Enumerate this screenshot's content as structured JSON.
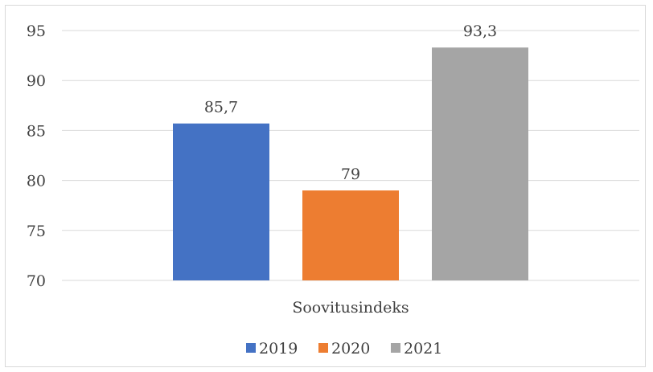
{
  "chart_data": {
    "type": "bar",
    "categories": [
      "Soovitusindeks"
    ],
    "series": [
      {
        "name": "2019",
        "values": [
          85.7
        ],
        "label": "85,7",
        "color": "#4472C4"
      },
      {
        "name": "2020",
        "values": [
          79
        ],
        "label": "79",
        "color": "#ED7D31"
      },
      {
        "name": "2021",
        "values": [
          93.3
        ],
        "label": "93,3",
        "color": "#A5A5A5"
      }
    ],
    "ylim": [
      70,
      95
    ],
    "yticks": [
      95,
      90,
      85,
      80,
      75,
      70
    ],
    "grid": true,
    "legend": "bottom",
    "title": "",
    "xlabel": "",
    "ylabel": ""
  }
}
